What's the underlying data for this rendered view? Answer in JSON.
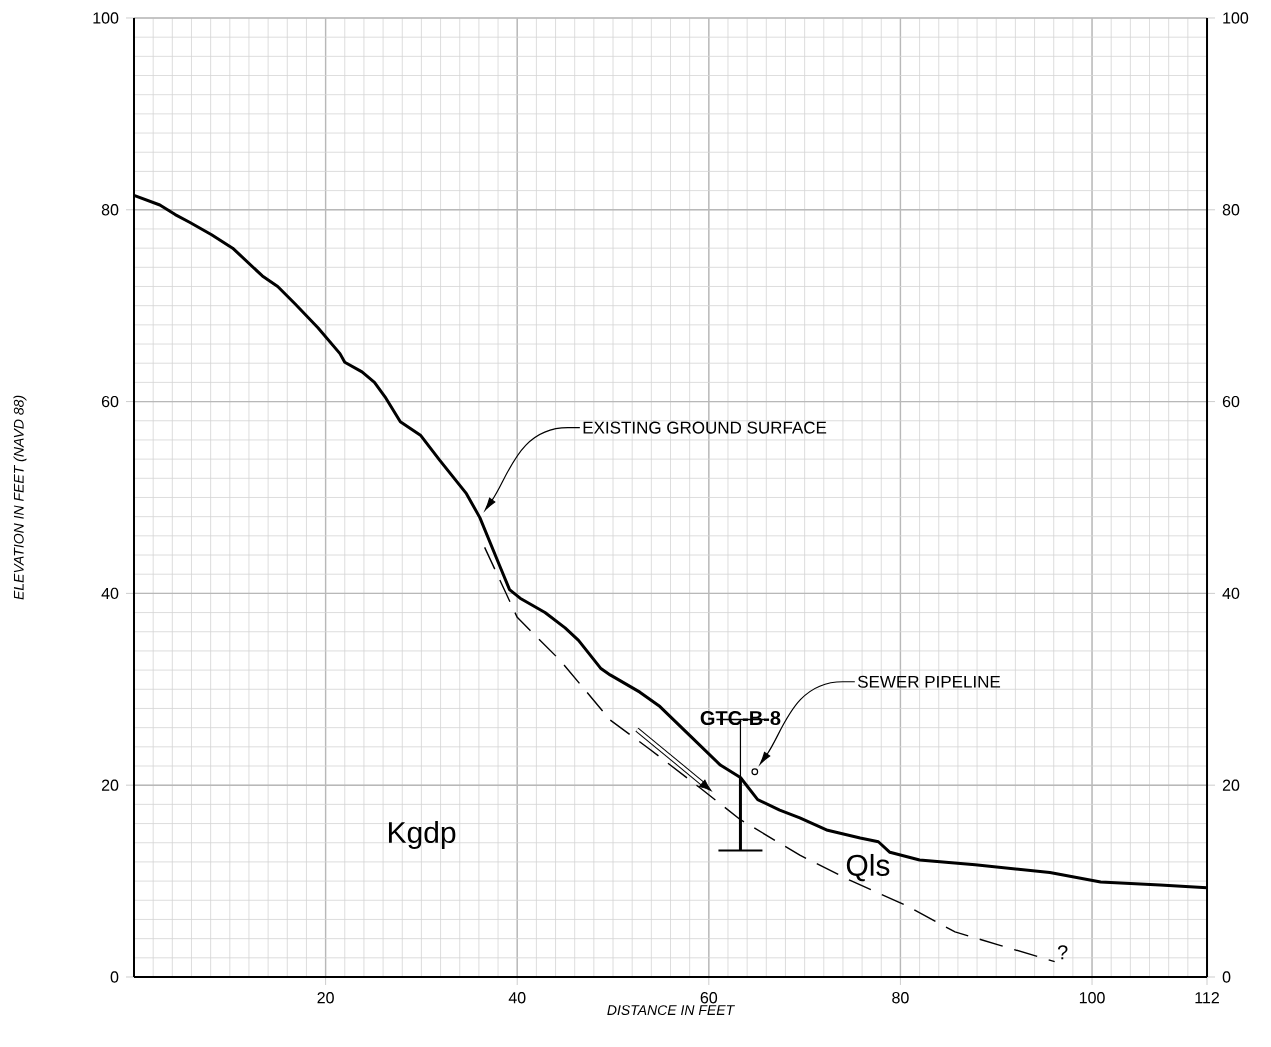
{
  "chart_data": {
    "type": "line",
    "xlabel": "DISTANCE IN FEET",
    "ylabel": "ELEVATION IN FEET (NAVD 88)",
    "xlim": [
      0,
      112
    ],
    "xticks": [
      20,
      40,
      60,
      80,
      100,
      112
    ],
    "ylim": [
      0,
      100
    ],
    "yticks": [
      0,
      20,
      40,
      60,
      80,
      100
    ],
    "y2lim": [
      0,
      100
    ],
    "y2ticks": [
      0,
      20,
      40,
      60,
      80,
      100
    ],
    "grid": true,
    "series": [
      {
        "color": "#000000",
        "line_style": "solid",
        "x": [
          0,
          2.7,
          4.3,
          5.8,
          8.1,
          10.3,
          13.4,
          15,
          16.8,
          19.2,
          21.5,
          22,
          23.8,
          25.1,
          26.2,
          27.8,
          29.9,
          31.9,
          34.7,
          36.1,
          38.2,
          39.2,
          40.3,
          42.9,
          45,
          46.4,
          48.7,
          49.7,
          52.8,
          54.9,
          58,
          61.2,
          63.3,
          65.1,
          67.4,
          69.5,
          72.4,
          75.8,
          77.7,
          78.9,
          82,
          87.8,
          95.6,
          100.9,
          107.1,
          112
        ],
        "values": [
          81.5,
          80.5,
          79.5,
          78.7,
          77.4,
          76,
          73.1,
          72,
          70.2,
          67.7,
          65,
          64.1,
          63.1,
          62,
          60.5,
          57.9,
          56.5,
          53.9,
          50.4,
          47.9,
          42.8,
          40.4,
          39.5,
          38,
          36.4,
          35.1,
          32.2,
          31.5,
          29.7,
          28.2,
          25.2,
          22.1,
          20.8,
          18.5,
          17.4,
          16.6,
          15.3,
          14.5,
          14.1,
          13,
          12.2,
          11.7,
          10.9,
          9.9,
          9.6,
          9.3
        ]
      },
      {
        "color": "#000000",
        "line_style": "dashed",
        "x": [
          36.6,
          40,
          44.5,
          49.7,
          53.9,
          59.1,
          63.3,
          69.5,
          74.7,
          80.5,
          85.7,
          90.4,
          96.1
        ],
        "values": [
          44.8,
          37.5,
          33,
          26.8,
          23.7,
          19.7,
          16.4,
          12.7,
          10.1,
          7.5,
          4.7,
          3.3,
          1.6
        ]
      },
      {
        "name": "GTC-B-8",
        "color": "#000000",
        "line_style": "solid",
        "x": [
          63.3,
          63.3
        ],
        "values": [
          20.8,
          13.2
        ]
      },
      {
        "type": "scatter",
        "marker": "circle",
        "color": "#000000",
        "x": [
          64.8
        ],
        "values": [
          21.4
        ]
      }
    ],
    "annotations": [
      "EXISTING GROUND SURFACE",
      "SEWER PIPELINE",
      "Kgdp",
      "Qls",
      "?"
    ]
  }
}
